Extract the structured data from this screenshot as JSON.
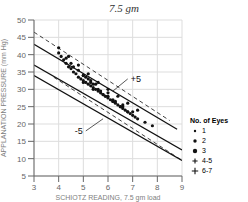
{
  "chart_data": {
    "type": "scatter",
    "title": "7.5 gm",
    "xlabel": "SCHIOTZ READING, 7.5 gm load",
    "ylabel": "APPLANATION PRESSURE (mm Hg)",
    "xlim": [
      3,
      9
    ],
    "ylim": [
      5,
      50
    ],
    "xticks": [
      3,
      4,
      5,
      6,
      7,
      8,
      9
    ],
    "yticks": [
      5,
      10,
      15,
      20,
      25,
      30,
      35,
      40,
      45,
      50
    ],
    "grid": true,
    "legend_title": "No. of Eyes",
    "legend_entries": [
      {
        "label": "1",
        "marker": "dot"
      },
      {
        "label": "2",
        "marker": "dot"
      },
      {
        "label": "3",
        "marker": "dot"
      },
      {
        "label": "4-5",
        "marker": "plus"
      },
      {
        "label": "6-7",
        "marker": "plus"
      }
    ],
    "annotations": [
      {
        "text": "+5",
        "x": 6.8,
        "y": 33.0,
        "arrow_x": 6.2,
        "arrow_y": 29.5
      },
      {
        "text": "-5",
        "x": 5.1,
        "y": 18.0,
        "arrow_x": 5.8,
        "arrow_y": 21.5
      }
    ],
    "series": [
      {
        "type": "line",
        "line_style": "dashed",
        "color": "#111111",
        "x": [
          3.0,
          8.5
        ],
        "y": [
          46.5,
          21.0
        ]
      },
      {
        "type": "line",
        "line_style": "solid",
        "color": "#111111",
        "x": [
          3.0,
          8.8
        ],
        "y": [
          43.0,
          18.5
        ]
      },
      {
        "type": "line",
        "line_style": "solid",
        "color": "#111111",
        "x": [
          3.0,
          9.0
        ],
        "y": [
          37.0,
          12.5
        ]
      },
      {
        "type": "line",
        "line_style": "solid",
        "color": "#111111",
        "x": [
          3.0,
          9.0
        ],
        "y": [
          34.0,
          9.5
        ]
      },
      {
        "type": "line",
        "line_style": "dashed",
        "color": "#111111",
        "x": [
          3.8,
          9.0
        ],
        "y": [
          33.5,
          9.5
        ]
      },
      {
        "type": "scatter",
        "marker": "dot",
        "color": "#111111",
        "x": [
          4.0,
          4.1,
          4.2,
          4.3,
          4.4,
          4.5,
          4.5,
          4.6,
          4.7,
          4.8,
          4.9,
          5.0,
          5.0,
          5.1,
          5.2,
          5.2,
          5.3,
          5.3,
          5.4,
          5.5,
          5.5,
          5.6,
          5.7,
          5.8,
          5.9,
          6.0,
          6.0,
          6.1,
          6.2,
          6.3,
          6.4,
          6.5,
          6.6,
          6.7,
          6.8,
          7.0,
          7.2,
          7.5,
          7.8,
          4.3,
          4.6,
          5.0,
          5.3,
          5.6,
          5.9,
          6.2,
          6.5,
          6.8,
          7.1,
          4.8,
          5.1,
          5.4,
          5.7,
          6.0,
          6.3,
          6.6,
          6.9,
          4.0,
          4.4,
          4.8,
          5.2,
          5.6,
          6.0,
          6.4,
          6.8,
          7.2,
          5.0,
          5.4,
          5.8,
          6.2,
          6.6,
          7.0
        ],
        "y": [
          40.5,
          39.5,
          38.5,
          37.5,
          36.5,
          36.0,
          37.5,
          35.0,
          34.5,
          33.5,
          33.0,
          32.5,
          34.0,
          32.0,
          31.5,
          33.0,
          31.0,
          32.5,
          30.5,
          30.0,
          31.5,
          29.5,
          29.0,
          28.5,
          28.0,
          27.5,
          29.0,
          27.0,
          26.5,
          26.0,
          25.5,
          25.0,
          24.5,
          24.0,
          23.5,
          22.5,
          21.5,
          20.5,
          19.5,
          39.0,
          36.5,
          34.0,
          32.0,
          30.0,
          28.0,
          26.5,
          25.0,
          23.5,
          22.0,
          35.5,
          33.5,
          31.5,
          29.5,
          28.0,
          26.5,
          25.0,
          23.0,
          42.0,
          39.5,
          37.0,
          34.5,
          32.0,
          30.0,
          28.0,
          26.0,
          24.0,
          32.0,
          30.0,
          28.5,
          27.0,
          25.5,
          23.5
        ]
      }
    ]
  }
}
